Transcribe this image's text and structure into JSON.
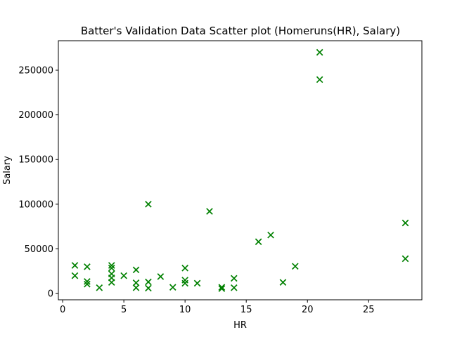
{
  "chart_data": {
    "type": "scatter",
    "title": "Batter's Validation Data Scatter plot (Homeruns(HR), Salary)",
    "xlabel": "HR",
    "ylabel": "Salary",
    "xlim": [
      -0.35,
      29.35
    ],
    "ylim": [
      -7000,
      283000
    ],
    "xticks": [
      {
        "value": 0,
        "label": "0"
      },
      {
        "value": 5,
        "label": "5"
      },
      {
        "value": 10,
        "label": "10"
      },
      {
        "value": 15,
        "label": "15"
      },
      {
        "value": 20,
        "label": "20"
      },
      {
        "value": 25,
        "label": "25"
      }
    ],
    "yticks": [
      {
        "value": 0,
        "label": "0"
      },
      {
        "value": 50000,
        "label": "50000"
      },
      {
        "value": 100000,
        "label": "100000"
      },
      {
        "value": 150000,
        "label": "150000"
      },
      {
        "value": 200000,
        "label": "200000"
      },
      {
        "value": 250000,
        "label": "250000"
      }
    ],
    "marker": "x",
    "color": "#008000",
    "grid": false,
    "points": [
      {
        "x": 1,
        "y": 31500
      },
      {
        "x": 1,
        "y": 20000
      },
      {
        "x": 2,
        "y": 30000
      },
      {
        "x": 2,
        "y": 13500
      },
      {
        "x": 2,
        "y": 10500
      },
      {
        "x": 3,
        "y": 6500
      },
      {
        "x": 4,
        "y": 31500
      },
      {
        "x": 4,
        "y": 28500
      },
      {
        "x": 4,
        "y": 22000
      },
      {
        "x": 4,
        "y": 17500
      },
      {
        "x": 4,
        "y": 12500
      },
      {
        "x": 5,
        "y": 20000
      },
      {
        "x": 6,
        "y": 26500
      },
      {
        "x": 6,
        "y": 12000
      },
      {
        "x": 6,
        "y": 6500
      },
      {
        "x": 7,
        "y": 100000
      },
      {
        "x": 7,
        "y": 13000
      },
      {
        "x": 7,
        "y": 6000
      },
      {
        "x": 8,
        "y": 19000
      },
      {
        "x": 9,
        "y": 7000
      },
      {
        "x": 10,
        "y": 28500
      },
      {
        "x": 10,
        "y": 15000
      },
      {
        "x": 10,
        "y": 11500
      },
      {
        "x": 11,
        "y": 11500
      },
      {
        "x": 12,
        "y": 92000
      },
      {
        "x": 13,
        "y": 7000
      },
      {
        "x": 13,
        "y": 5500
      },
      {
        "x": 14,
        "y": 17000
      },
      {
        "x": 14,
        "y": 6500
      },
      {
        "x": 16,
        "y": 58000
      },
      {
        "x": 17,
        "y": 65500
      },
      {
        "x": 18,
        "y": 12500
      },
      {
        "x": 19,
        "y": 30500
      },
      {
        "x": 21,
        "y": 270000
      },
      {
        "x": 21,
        "y": 239500
      },
      {
        "x": 28,
        "y": 79000
      },
      {
        "x": 28,
        "y": 39000
      }
    ]
  }
}
